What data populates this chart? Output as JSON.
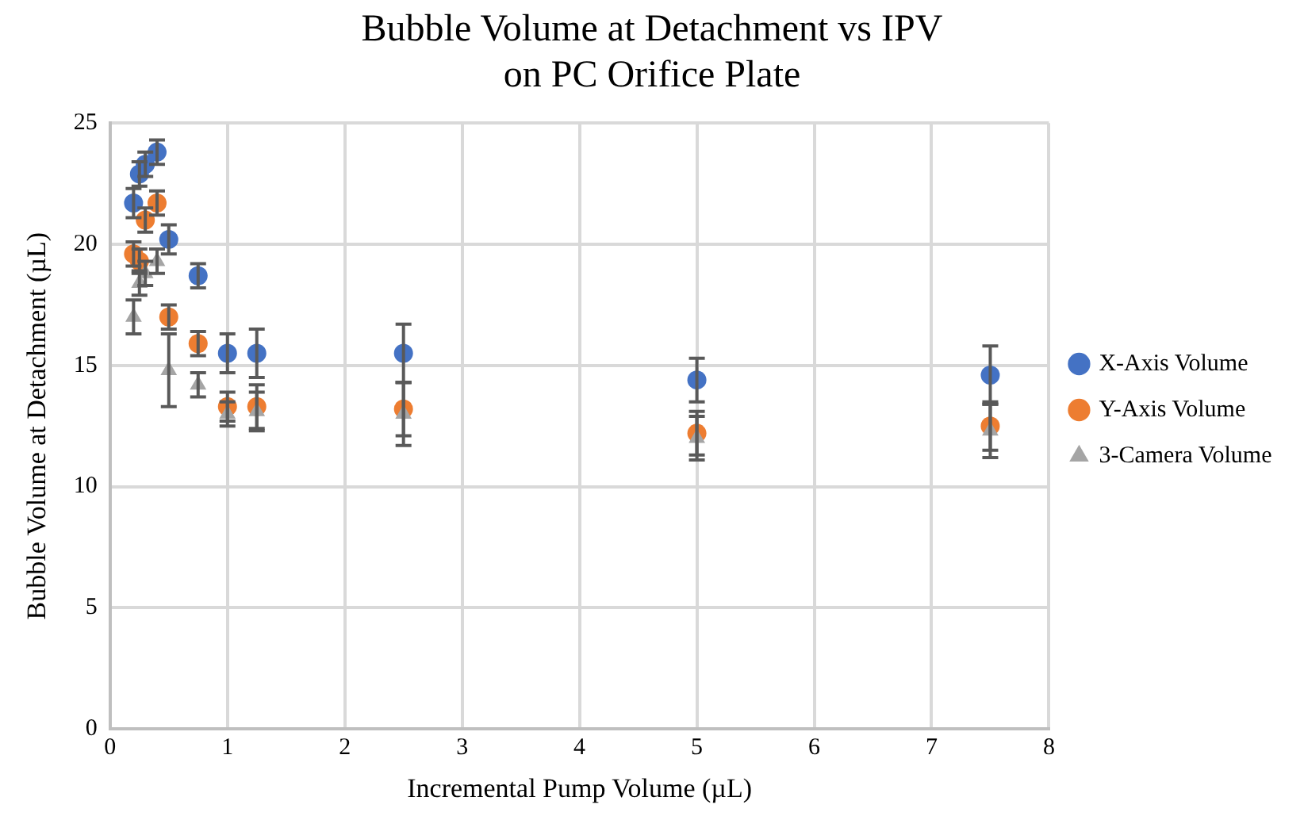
{
  "chart_data": {
    "type": "scatter",
    "title": "Bubble Volume at Detachment vs IPV\non PC Orifice Plate",
    "xlabel": "Incremental Pump Volume (µL)",
    "ylabel": "Bubble Volume at Detachment (µL)",
    "x": [
      0.2,
      0.25,
      0.3,
      0.4,
      0.5,
      0.75,
      1,
      1.25,
      2.5,
      5,
      7.5
    ],
    "series": [
      {
        "name": "X-Axis Volume",
        "color": "#4472c4",
        "marker": "circle",
        "values": [
          21.7,
          22.9,
          23.3,
          23.8,
          20.2,
          18.7,
          15.5,
          15.5,
          15.5,
          14.4,
          14.6
        ],
        "errors": [
          0.6,
          0.5,
          0.5,
          0.5,
          0.6,
          0.5,
          0.8,
          1.0,
          1.2,
          0.9,
          1.2
        ]
      },
      {
        "name": "Y-Axis Volume",
        "color": "#ed7d31",
        "marker": "circle",
        "values": [
          19.6,
          19.3,
          21.0,
          21.7,
          17.0,
          15.9,
          13.3,
          13.3,
          13.2,
          12.2,
          12.5
        ],
        "errors": [
          0.5,
          0.5,
          0.5,
          0.5,
          0.5,
          0.5,
          0.6,
          0.9,
          1.1,
          0.9,
          1.0
        ]
      },
      {
        "name": "3-Camera Volume",
        "color": "#a5a5a5",
        "marker": "triangle",
        "values": [
          17.0,
          18.4,
          18.8,
          19.3,
          14.8,
          14.2,
          13.0,
          13.1,
          13.0,
          12.0,
          12.3
        ],
        "errors": [
          0.7,
          0.5,
          0.5,
          0.5,
          1.5,
          0.5,
          0.5,
          0.8,
          1.3,
          0.9,
          1.1
        ]
      }
    ],
    "xlim": [
      0,
      8
    ],
    "xticks": [
      0,
      1,
      2,
      3,
      4,
      5,
      6,
      7,
      8
    ],
    "ylim": [
      0,
      25
    ],
    "yticks": [
      0,
      5,
      10,
      15,
      20,
      25
    ],
    "grid": true,
    "legend": "right"
  }
}
